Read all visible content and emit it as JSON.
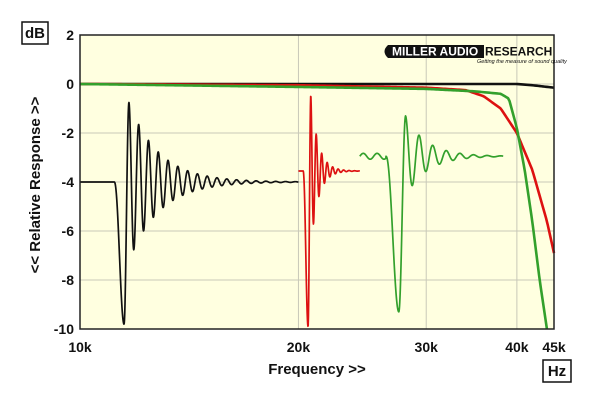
{
  "chart_data": {
    "type": "line",
    "title": "",
    "xlabel": "Frequency >>",
    "ylabel": "<< Relative Response >>",
    "x_unit": "Hz",
    "y_unit": "dB",
    "x_scale": "log",
    "xlim": [
      10000,
      45000
    ],
    "ylim": [
      -10,
      2
    ],
    "x_ticks": [
      {
        "value": 10000,
        "label": "10k"
      },
      {
        "value": 20000,
        "label": "20k"
      },
      {
        "value": 30000,
        "label": "30k"
      },
      {
        "value": 40000,
        "label": "40k"
      },
      {
        "value": 45000,
        "label": "45k"
      }
    ],
    "y_ticks": [
      {
        "value": 2,
        "label": "2"
      },
      {
        "value": 0,
        "label": "0"
      },
      {
        "value": -2,
        "label": "-2"
      },
      {
        "value": -4,
        "label": "-4"
      },
      {
        "value": -6,
        "label": "-6"
      },
      {
        "value": -8,
        "label": "-8"
      },
      {
        "value": -10,
        "label": "-10"
      }
    ],
    "grid": true,
    "background": "#ffffe0",
    "logo": {
      "main_left": "MILLER AUDIO",
      "main_right": "RESEARCH",
      "tagline": "Getting the measure of sound quality"
    },
    "series": [
      {
        "color": "#111111",
        "kind": "frequency-response",
        "x": [
          10000,
          15000,
          20000,
          25000,
          30000,
          35000,
          40000,
          42000,
          45000
        ],
        "y": [
          0.0,
          0.0,
          0.0,
          0.0,
          0.0,
          0.0,
          0.0,
          -0.05,
          -0.15
        ]
      },
      {
        "color": "#dd1111",
        "kind": "frequency-response",
        "x": [
          10000,
          20000,
          30000,
          34000,
          36000,
          38000,
          40000,
          42000,
          44000,
          45000
        ],
        "y": [
          0.0,
          -0.05,
          -0.15,
          -0.25,
          -0.5,
          -1.0,
          -2.0,
          -3.5,
          -5.6,
          -6.9
        ]
      },
      {
        "color": "#33a02c",
        "kind": "frequency-response",
        "x": [
          10000,
          20000,
          30000,
          35000,
          38000,
          39000,
          40000,
          41000,
          42000,
          43000,
          44000
        ],
        "y": [
          0.0,
          -0.12,
          -0.2,
          -0.3,
          -0.4,
          -0.6,
          -1.8,
          -3.5,
          -5.6,
          -8.0,
          -10.0
        ]
      },
      {
        "color": "#111111",
        "kind": "impulse-response",
        "x_start": 10000,
        "x_end": 20000,
        "baseline_db": -4.0,
        "onset": 11150,
        "pre_dip_x": 11500,
        "pre_dip_db": -9.8,
        "peak_x": 11680,
        "peak_db": -0.75,
        "ring_cycles": 23,
        "ring_amplitude_db": 3.0,
        "ring_decay": 5.5
      },
      {
        "color": "#dd1111",
        "kind": "impulse-response",
        "x_start": 20000,
        "x_end": 24300,
        "baseline_db": -3.55,
        "onset": 20300,
        "pre_dip_x": 20620,
        "pre_dip_db": -9.9,
        "peak_x": 20800,
        "peak_db": -0.45,
        "ring_cycles": 6,
        "ring_amplitude_db": 2.2,
        "ring_decay": 6.0
      },
      {
        "color": "#33a02c",
        "kind": "impulse-response",
        "x_start": 24300,
        "x_end": 38300,
        "baseline_db": -2.95,
        "onset": 26400,
        "pre_dip_x": 27500,
        "pre_dip_db": -9.3,
        "peak_x": 28100,
        "peak_db": -1.3,
        "ring_cycles": 17,
        "ring_amplitude_db": 1.9,
        "ring_decay": 4.5,
        "pre_ripple_db": 0.12
      }
    ]
  }
}
